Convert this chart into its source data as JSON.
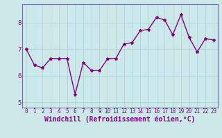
{
  "x": [
    0,
    1,
    2,
    3,
    4,
    5,
    6,
    7,
    8,
    9,
    10,
    11,
    12,
    13,
    14,
    15,
    16,
    17,
    18,
    19,
    20,
    21,
    22,
    23
  ],
  "y": [
    7.0,
    6.4,
    6.3,
    6.65,
    6.65,
    6.65,
    5.3,
    6.5,
    6.2,
    6.2,
    6.65,
    6.65,
    7.2,
    7.25,
    7.7,
    7.75,
    8.2,
    8.1,
    7.55,
    8.3,
    7.45,
    6.9,
    7.4,
    7.35
  ],
  "line_color": "#800080",
  "marker": "*",
  "marker_size": 3,
  "xlabel": "Windchill (Refroidissement éolien,°C)",
  "xlabel_fontsize": 7,
  "ylim": [
    4.8,
    8.7
  ],
  "xlim": [
    -0.5,
    23.5
  ],
  "yticks": [
    5,
    6,
    7,
    8
  ],
  "xticks": [
    0,
    1,
    2,
    3,
    4,
    5,
    6,
    7,
    8,
    9,
    10,
    11,
    12,
    13,
    14,
    15,
    16,
    17,
    18,
    19,
    20,
    21,
    22,
    23
  ],
  "xtick_fontsize": 5.5,
  "ytick_fontsize": 6.5,
  "grid_color": "#b0d8d8",
  "bg_color": "#cce8e8",
  "fig_bg_color": "#cce8e8",
  "spine_color": "#7070a0",
  "line_width": 1.0
}
